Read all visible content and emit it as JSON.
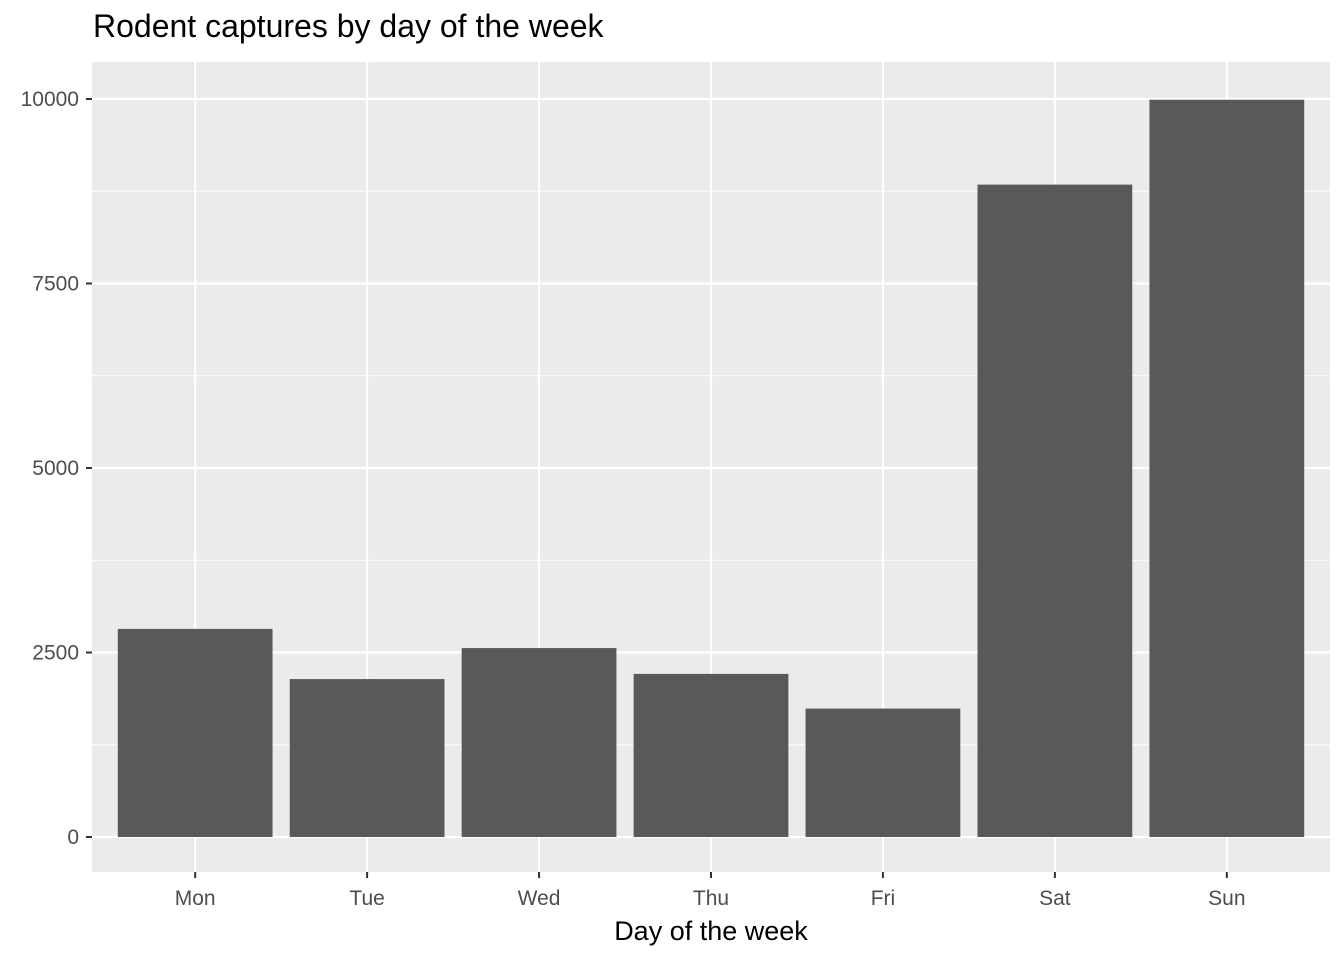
{
  "chart_data": {
    "type": "bar",
    "title": "Rodent captures by day of the week",
    "xlabel": "Day of the week",
    "ylabel": "",
    "categories": [
      "Mon",
      "Tue",
      "Wed",
      "Thu",
      "Fri",
      "Sat",
      "Sun"
    ],
    "values": [
      2820,
      2140,
      2560,
      2210,
      1740,
      8840,
      9990
    ],
    "ylim": [
      0,
      10500
    ],
    "yticks": [
      0,
      2500,
      5000,
      7500,
      10000
    ],
    "grid": true,
    "legend": "none",
    "colors": {
      "bar": "#595959",
      "panel": "#EBEBEB",
      "grid": "#FFFFFF",
      "tick_text": "#4D4D4D",
      "tick_mark": "#333333"
    }
  }
}
